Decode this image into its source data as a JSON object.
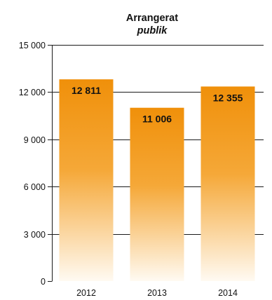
{
  "chart_data": {
    "type": "bar",
    "title": "Arrangerat",
    "subtitle": "publik",
    "categories": [
      "2012",
      "2013",
      "2014"
    ],
    "values": [
      12811,
      11006,
      12355
    ],
    "value_labels": [
      "12 811",
      "11 006",
      "12 355"
    ],
    "ylim": [
      0,
      15000
    ],
    "yticks": [
      0,
      3000,
      6000,
      9000,
      12000,
      15000
    ],
    "ytick_labels": [
      "0",
      "3 000",
      "6 000",
      "9 000",
      "12 000",
      "15 000"
    ],
    "xlabel": "",
    "ylabel": "",
    "grid": true,
    "colors": {
      "bar_top": "#f0900a",
      "bar_mid": "#f5a838",
      "bar_bottom": "#fffaf2",
      "grid": "#1a1a1a",
      "text": "#111111"
    }
  }
}
